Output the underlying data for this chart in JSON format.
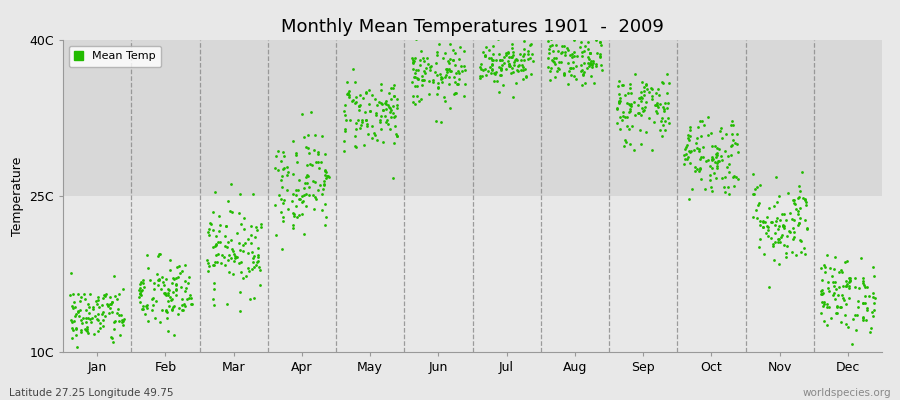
{
  "title": "Monthly Mean Temperatures 1901  -  2009",
  "ylabel": "Temperature",
  "xlabel_bottom_left": "Latitude 27.25 Longitude 49.75",
  "xlabel_bottom_right": "worldspecies.org",
  "legend_label": "Mean Temp",
  "dot_color": "#22bb00",
  "background_color": "#e8e8e8",
  "background_color_upper": "#e0e0e0",
  "background_color_lower": "#ececec",
  "ylim": [
    10,
    40
  ],
  "yticks": [
    10,
    25,
    40
  ],
  "ytick_labels": [
    "10C",
    "25C",
    "40C"
  ],
  "month_names": [
    "Jan",
    "Feb",
    "Mar",
    "Apr",
    "May",
    "Jun",
    "Jul",
    "Aug",
    "Sep",
    "Oct",
    "Nov",
    "Dec"
  ],
  "monthly_means": [
    13.5,
    15.5,
    20.0,
    26.5,
    33.0,
    36.5,
    38.0,
    38.0,
    33.5,
    29.0,
    22.5,
    15.5
  ],
  "monthly_stds": [
    1.5,
    1.8,
    2.2,
    2.5,
    1.8,
    1.5,
    1.2,
    1.2,
    1.8,
    2.0,
    2.2,
    1.8
  ],
  "n_years": 109,
  "seed": 42,
  "marker_size": 4,
  "dashed_line_color": "#888888",
  "spine_color": "#999999"
}
